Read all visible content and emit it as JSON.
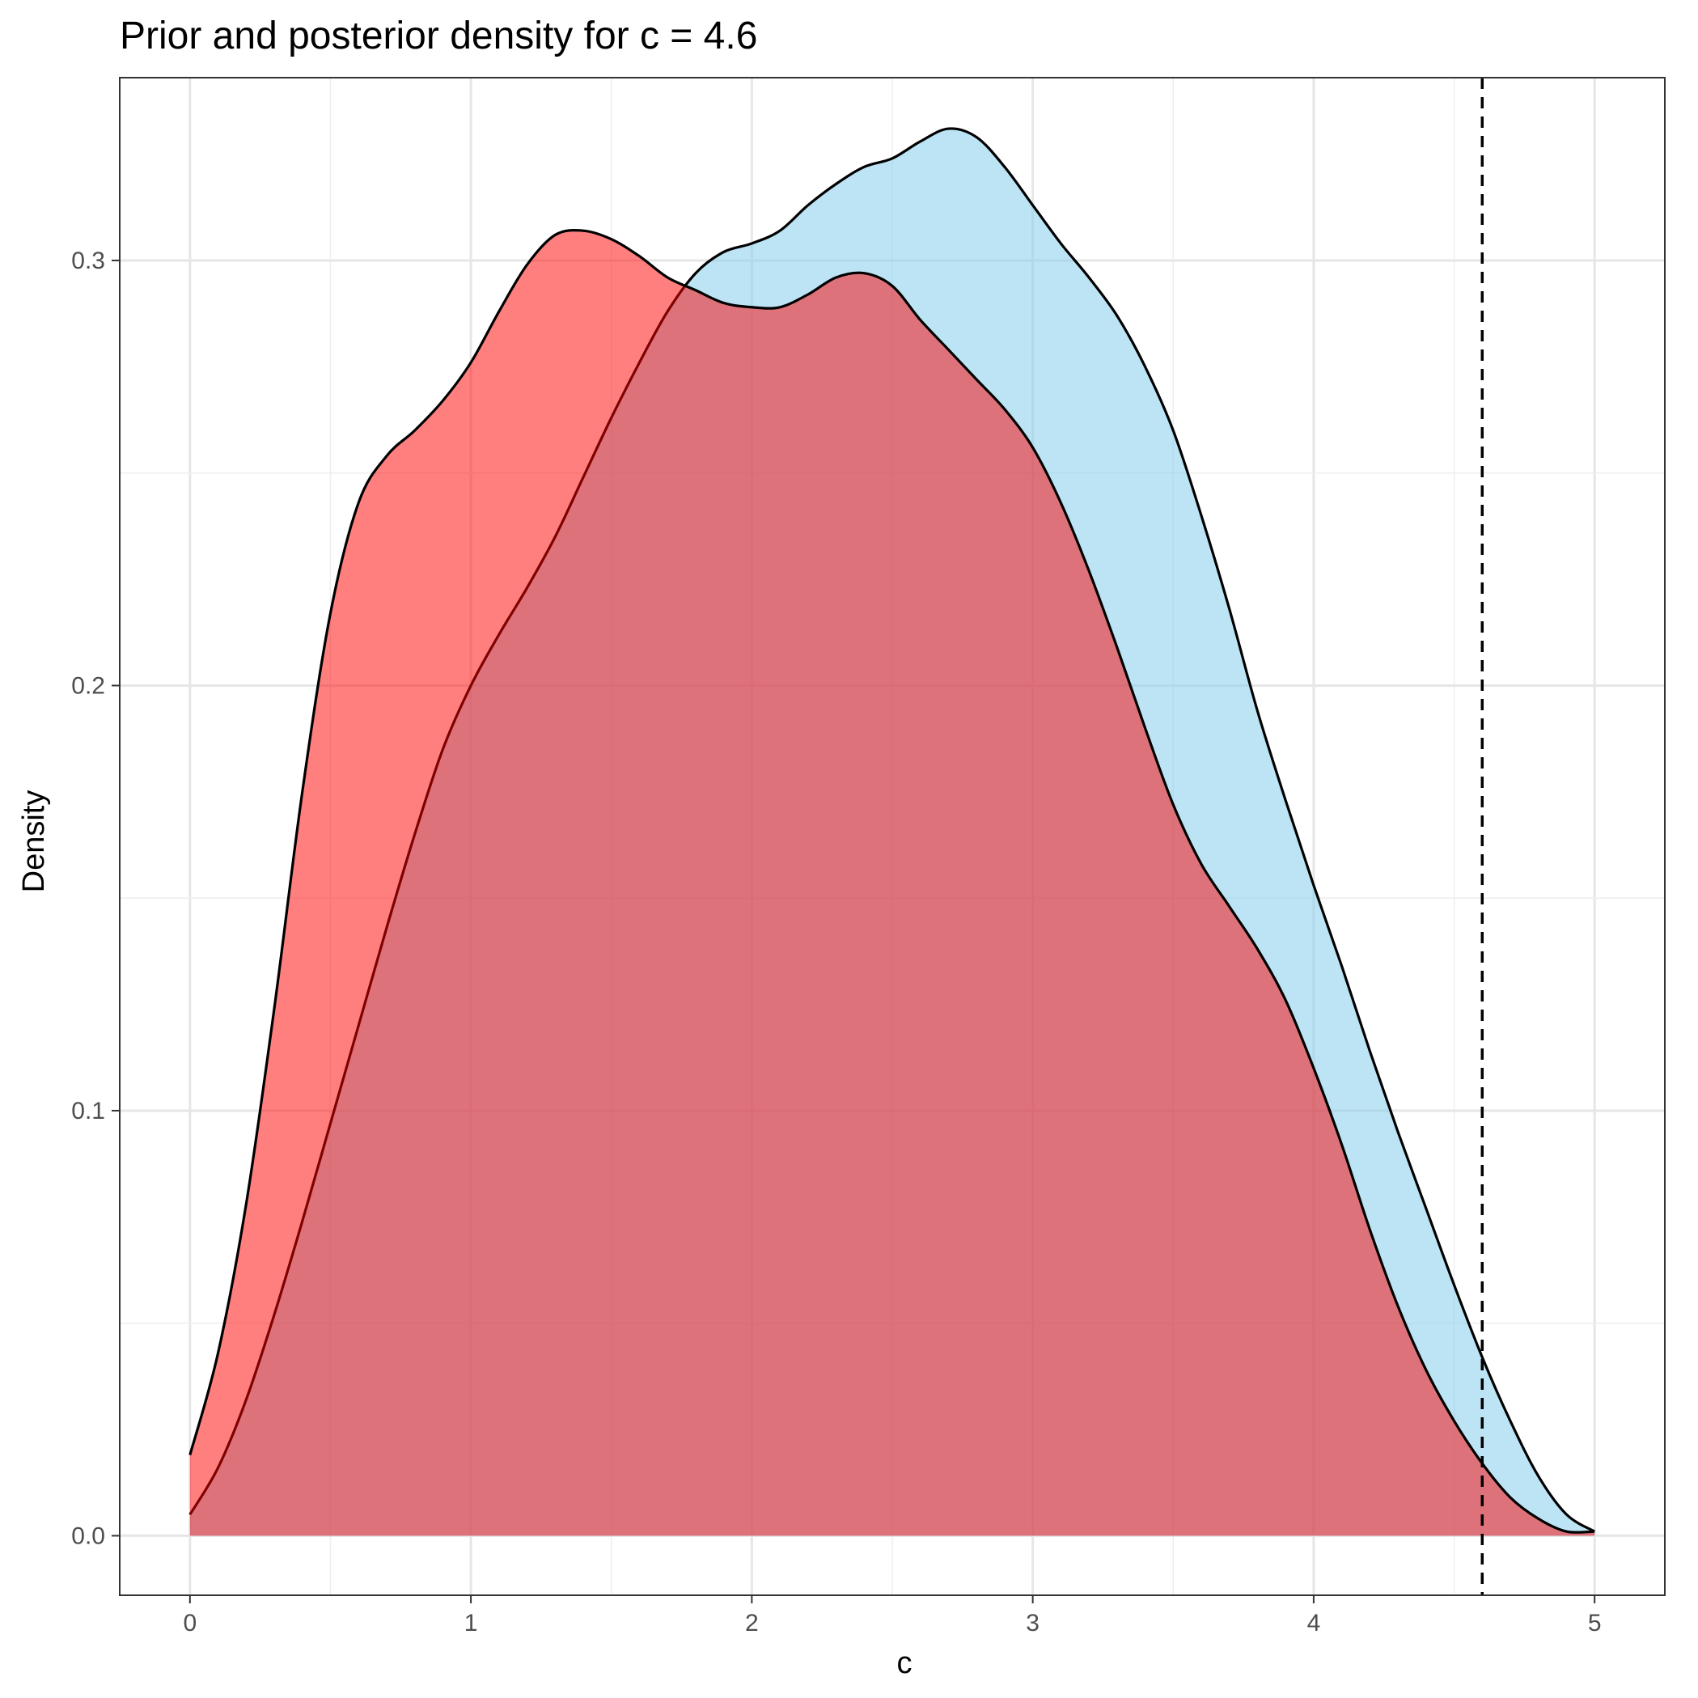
{
  "chart_data": {
    "type": "area",
    "title": "Prior and posterior density for c = 4.6",
    "xlabel": "c",
    "ylabel": "Density",
    "xlim": [
      -0.25,
      5.25
    ],
    "ylim": [
      -0.014,
      0.343
    ],
    "x_ticks": [
      0,
      1,
      2,
      3,
      4,
      5
    ],
    "x_tick_labels": [
      "0",
      "1",
      "2",
      "3",
      "4",
      "5"
    ],
    "y_ticks": [
      0.0,
      0.1,
      0.2,
      0.3
    ],
    "y_tick_labels": [
      "0.0",
      "0.1",
      "0.2",
      "0.3"
    ],
    "grid": true,
    "legend": "none",
    "reference_line": {
      "x": 4.6,
      "style": "dashed",
      "color": "#000000"
    },
    "series": [
      {
        "fill": "#87CEEB",
        "fill_opacity": 0.55,
        "x": [
          0,
          0.1,
          0.2,
          0.3,
          0.4,
          0.5,
          0.6,
          0.7,
          0.8,
          0.9,
          1.0,
          1.1,
          1.2,
          1.3,
          1.4,
          1.5,
          1.6,
          1.7,
          1.8,
          1.9,
          2.0,
          2.1,
          2.2,
          2.3,
          2.4,
          2.5,
          2.6,
          2.7,
          2.8,
          2.9,
          3.0,
          3.1,
          3.2,
          3.3,
          3.4,
          3.5,
          3.6,
          3.7,
          3.8,
          3.9,
          4.0,
          4.1,
          4.2,
          4.3,
          4.4,
          4.5,
          4.6,
          4.7,
          4.8,
          4.9,
          5.0
        ],
        "y": [
          0.005,
          0.016,
          0.032,
          0.052,
          0.074,
          0.097,
          0.12,
          0.143,
          0.165,
          0.185,
          0.2,
          0.212,
          0.223,
          0.235,
          0.249,
          0.263,
          0.276,
          0.288,
          0.297,
          0.302,
          0.304,
          0.307,
          0.313,
          0.318,
          0.322,
          0.324,
          0.328,
          0.331,
          0.329,
          0.322,
          0.313,
          0.304,
          0.296,
          0.287,
          0.275,
          0.26,
          0.24,
          0.218,
          0.194,
          0.173,
          0.153,
          0.134,
          0.114,
          0.095,
          0.077,
          0.059,
          0.042,
          0.027,
          0.014,
          0.005,
          0.001
        ]
      },
      {
        "fill": "#FF0000",
        "fill_opacity": 0.5,
        "x": [
          0,
          0.1,
          0.2,
          0.3,
          0.4,
          0.5,
          0.6,
          0.7,
          0.8,
          0.9,
          1.0,
          1.1,
          1.2,
          1.3,
          1.4,
          1.5,
          1.6,
          1.7,
          1.8,
          1.9,
          2.0,
          2.1,
          2.2,
          2.3,
          2.4,
          2.5,
          2.6,
          2.7,
          2.8,
          2.9,
          3.0,
          3.1,
          3.2,
          3.3,
          3.4,
          3.5,
          3.6,
          3.7,
          3.8,
          3.9,
          4.0,
          4.1,
          4.2,
          4.3,
          4.4,
          4.5,
          4.6,
          4.7,
          4.8,
          4.9,
          5.0
        ],
        "y": [
          0.019,
          0.043,
          0.078,
          0.124,
          0.175,
          0.217,
          0.243,
          0.254,
          0.26,
          0.267,
          0.276,
          0.288,
          0.299,
          0.306,
          0.307,
          0.305,
          0.301,
          0.296,
          0.293,
          0.29,
          0.289,
          0.289,
          0.292,
          0.296,
          0.297,
          0.294,
          0.286,
          0.279,
          0.272,
          0.265,
          0.256,
          0.243,
          0.227,
          0.209,
          0.19,
          0.172,
          0.158,
          0.148,
          0.138,
          0.126,
          0.11,
          0.092,
          0.072,
          0.054,
          0.039,
          0.027,
          0.017,
          0.009,
          0.004,
          0.001,
          0.001
        ]
      }
    ]
  }
}
